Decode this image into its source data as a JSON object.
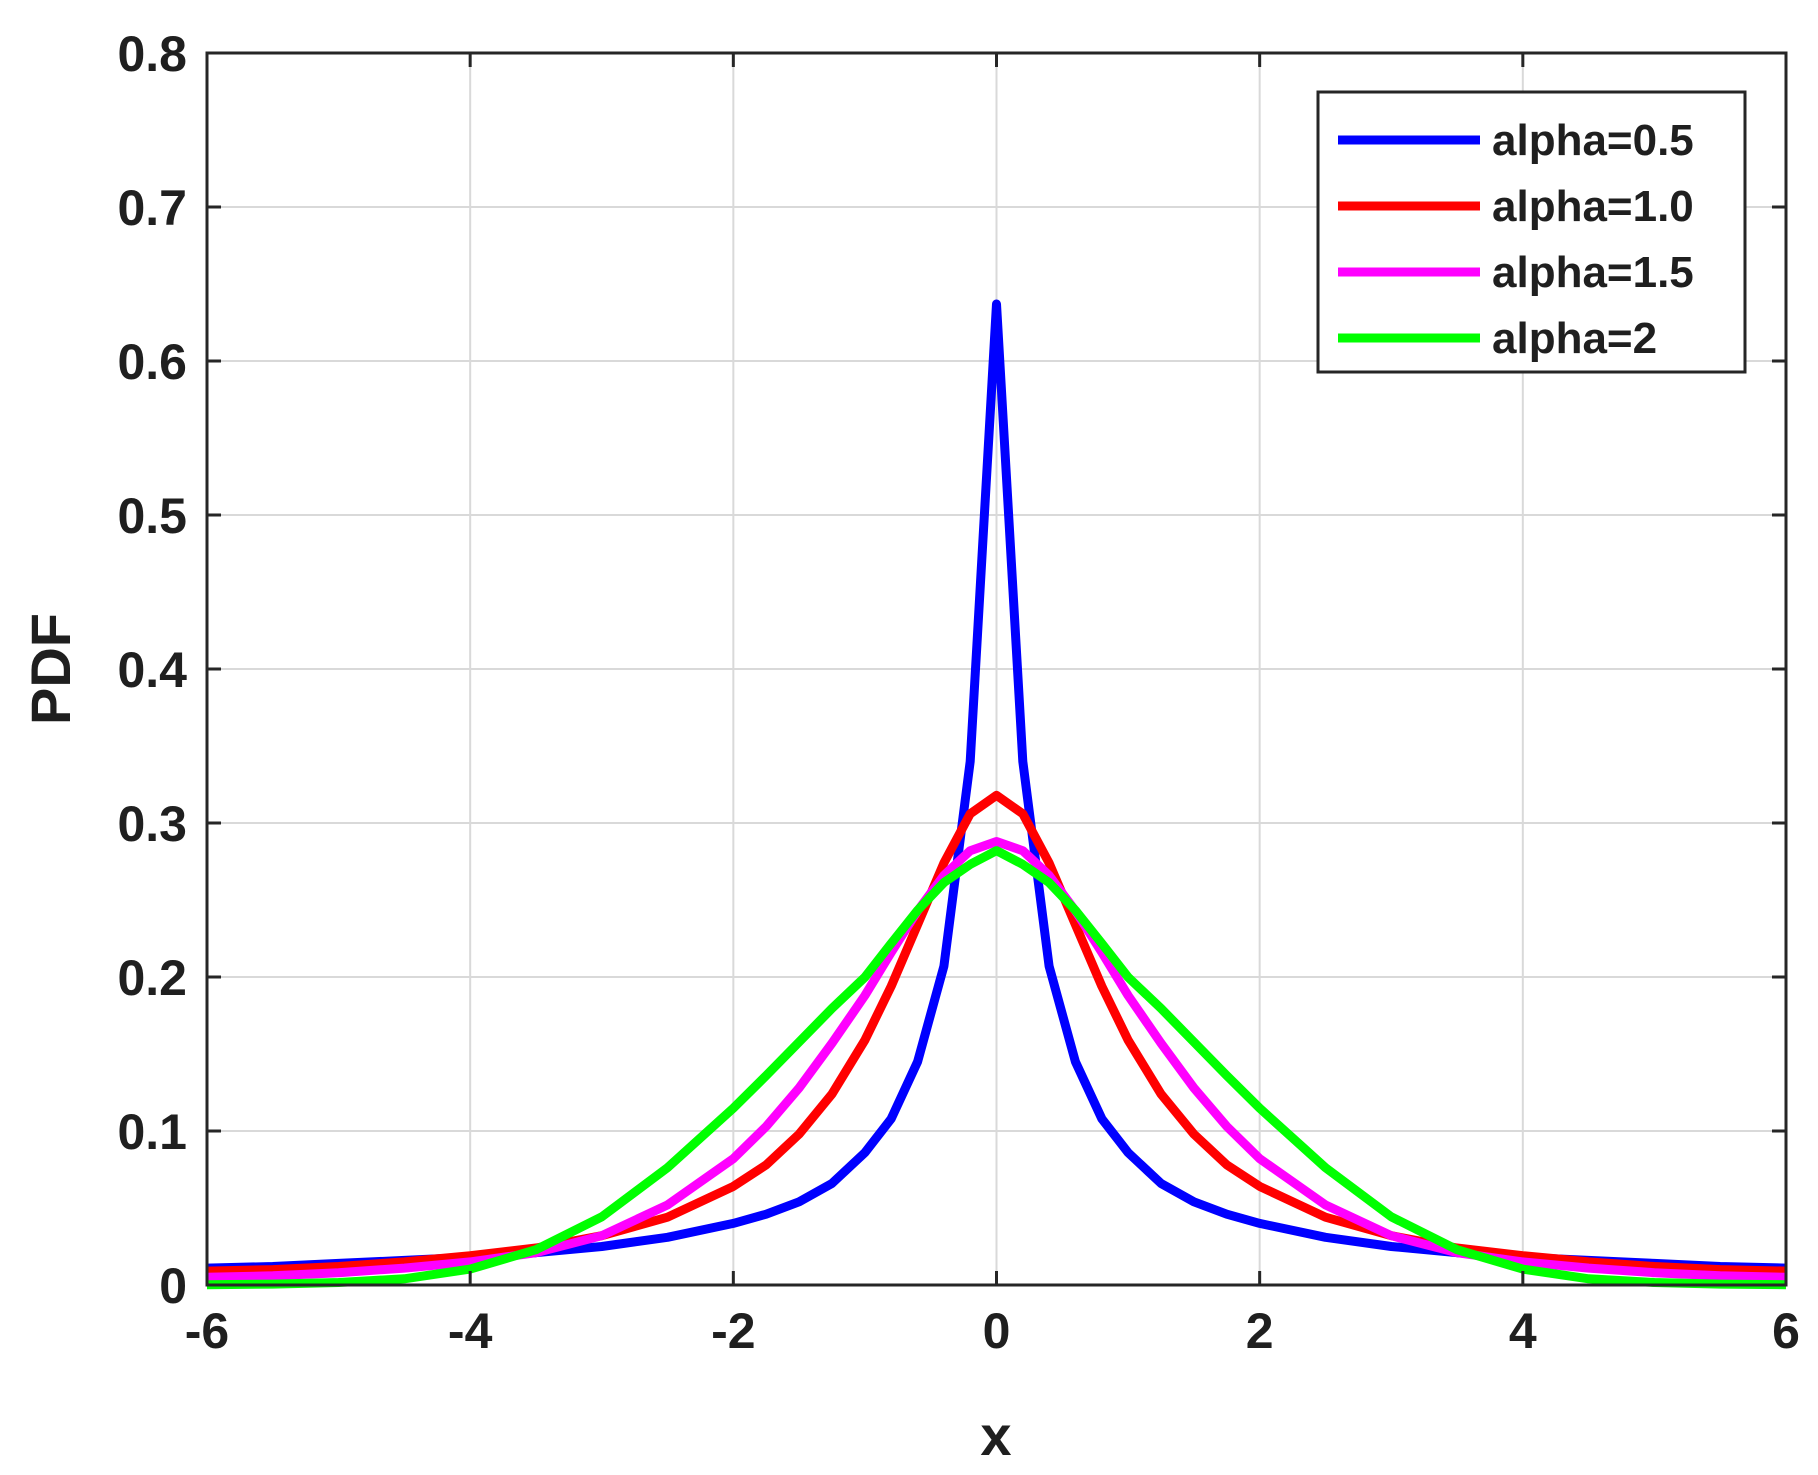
{
  "chart_data": {
    "type": "line",
    "xlabel": "x",
    "ylabel": "PDF",
    "xlim": [
      -6,
      6
    ],
    "ylim": [
      0,
      0.8
    ],
    "xticks": [
      -6,
      -4,
      -2,
      0,
      2,
      4,
      6
    ],
    "xtick_labels": [
      "-6",
      "-4",
      "-2",
      "0",
      "2",
      "4",
      "6"
    ],
    "yticks": [
      0,
      0.1,
      0.2,
      0.3,
      0.4,
      0.5,
      0.6,
      0.7,
      0.8
    ],
    "ytick_labels": [
      "0",
      "0.1",
      "0.2",
      "0.3",
      "0.4",
      "0.5",
      "0.6",
      "0.7",
      "0.8"
    ],
    "grid": true,
    "legend_position": "top-right",
    "x": [
      -6,
      -5.5,
      -5,
      -4.5,
      -4,
      -3.5,
      -3,
      -2.5,
      -2,
      -1.75,
      -1.5,
      -1.25,
      -1,
      -0.8,
      -0.6,
      -0.4,
      -0.2,
      0,
      0.2,
      0.4,
      0.6,
      0.8,
      1,
      1.25,
      1.5,
      1.75,
      2,
      2.5,
      3,
      3.5,
      4,
      4.5,
      5,
      5.5,
      6
    ],
    "series": [
      {
        "name": "alpha=0.5",
        "color": "#0000ff",
        "values": [
          0.011,
          0.012,
          0.014,
          0.016,
          0.018,
          0.021,
          0.025,
          0.031,
          0.04,
          0.046,
          0.054,
          0.066,
          0.086,
          0.108,
          0.145,
          0.207,
          0.34,
          0.637,
          0.34,
          0.207,
          0.145,
          0.108,
          0.086,
          0.066,
          0.054,
          0.046,
          0.04,
          0.031,
          0.025,
          0.021,
          0.018,
          0.016,
          0.014,
          0.012,
          0.011
        ]
      },
      {
        "name": "alpha=1.0",
        "color": "#ff0000",
        "values": [
          0.009,
          0.01,
          0.012,
          0.015,
          0.019,
          0.024,
          0.032,
          0.044,
          0.064,
          0.078,
          0.098,
          0.124,
          0.159,
          0.194,
          0.234,
          0.274,
          0.306,
          0.318,
          0.306,
          0.274,
          0.234,
          0.194,
          0.159,
          0.124,
          0.098,
          0.078,
          0.064,
          0.044,
          0.032,
          0.024,
          0.019,
          0.015,
          0.012,
          0.01,
          0.009
        ]
      },
      {
        "name": "alpha=1.5",
        "color": "#ff00ff",
        "values": [
          0.005,
          0.006,
          0.008,
          0.011,
          0.015,
          0.021,
          0.032,
          0.052,
          0.082,
          0.103,
          0.128,
          0.157,
          0.188,
          0.216,
          0.243,
          0.266,
          0.282,
          0.288,
          0.282,
          0.266,
          0.243,
          0.216,
          0.188,
          0.157,
          0.128,
          0.103,
          0.082,
          0.052,
          0.032,
          0.021,
          0.015,
          0.011,
          0.008,
          0.006,
          0.005
        ]
      },
      {
        "name": "alpha=2",
        "color": "#00ff00",
        "values": [
          0.0002,
          0.0006,
          0.0016,
          0.004,
          0.0103,
          0.0229,
          0.0443,
          0.0762,
          0.1148,
          0.136,
          0.1578,
          0.1796,
          0.1999,
          0.2218,
          0.2433,
          0.2613,
          0.2731,
          0.2821,
          0.2731,
          0.2613,
          0.2433,
          0.2218,
          0.1999,
          0.1796,
          0.1578,
          0.136,
          0.1148,
          0.0762,
          0.0443,
          0.0229,
          0.0103,
          0.004,
          0.0016,
          0.0006,
          0.0002
        ]
      }
    ]
  }
}
